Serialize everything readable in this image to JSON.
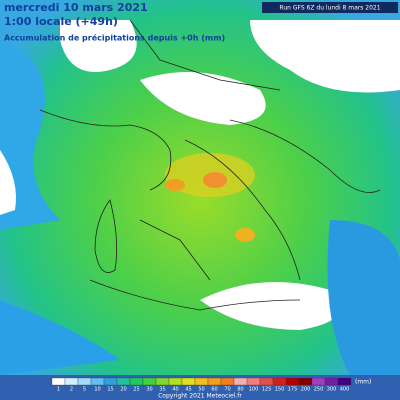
{
  "header": {
    "date": "mercredi 10 mars 2021",
    "time": "1:00 locale (+49h)",
    "product": "Accumulation de précipitations depuis +0h (mm)",
    "run": "Run GFS 6Z du lundi 8 mars 2021"
  },
  "footer": {
    "copyright": "Copyright 2021 Meteociel.fr"
  },
  "legend": {
    "unit": "(mm)",
    "items": [
      {
        "label": "1",
        "color": "#ffffff"
      },
      {
        "label": "2",
        "color": "#d0f0ff"
      },
      {
        "label": "5",
        "color": "#a0dcff"
      },
      {
        "label": "10",
        "color": "#60c0f0"
      },
      {
        "label": "15",
        "color": "#30a0e0"
      },
      {
        "label": "20",
        "color": "#20c0a0"
      },
      {
        "label": "25",
        "color": "#20c860"
      },
      {
        "label": "30",
        "color": "#40d040"
      },
      {
        "label": "35",
        "color": "#80d830"
      },
      {
        "label": "40",
        "color": "#b0e020"
      },
      {
        "label": "45",
        "color": "#e0e020"
      },
      {
        "label": "50",
        "color": "#f0c020"
      },
      {
        "label": "60",
        "color": "#f0a020"
      },
      {
        "label": "70",
        "color": "#f08020"
      },
      {
        "label": "80",
        "color": "#f0b0b0"
      },
      {
        "label": "100",
        "color": "#f08080"
      },
      {
        "label": "125",
        "color": "#e05050"
      },
      {
        "label": "150",
        "color": "#d02020"
      },
      {
        "label": "175",
        "color": "#b00000"
      },
      {
        "label": "200",
        "color": "#800000"
      },
      {
        "label": "250",
        "color": "#a040c0"
      },
      {
        "label": "300",
        "color": "#7020a0"
      },
      {
        "label": "400",
        "color": "#400080"
      }
    ]
  }
}
